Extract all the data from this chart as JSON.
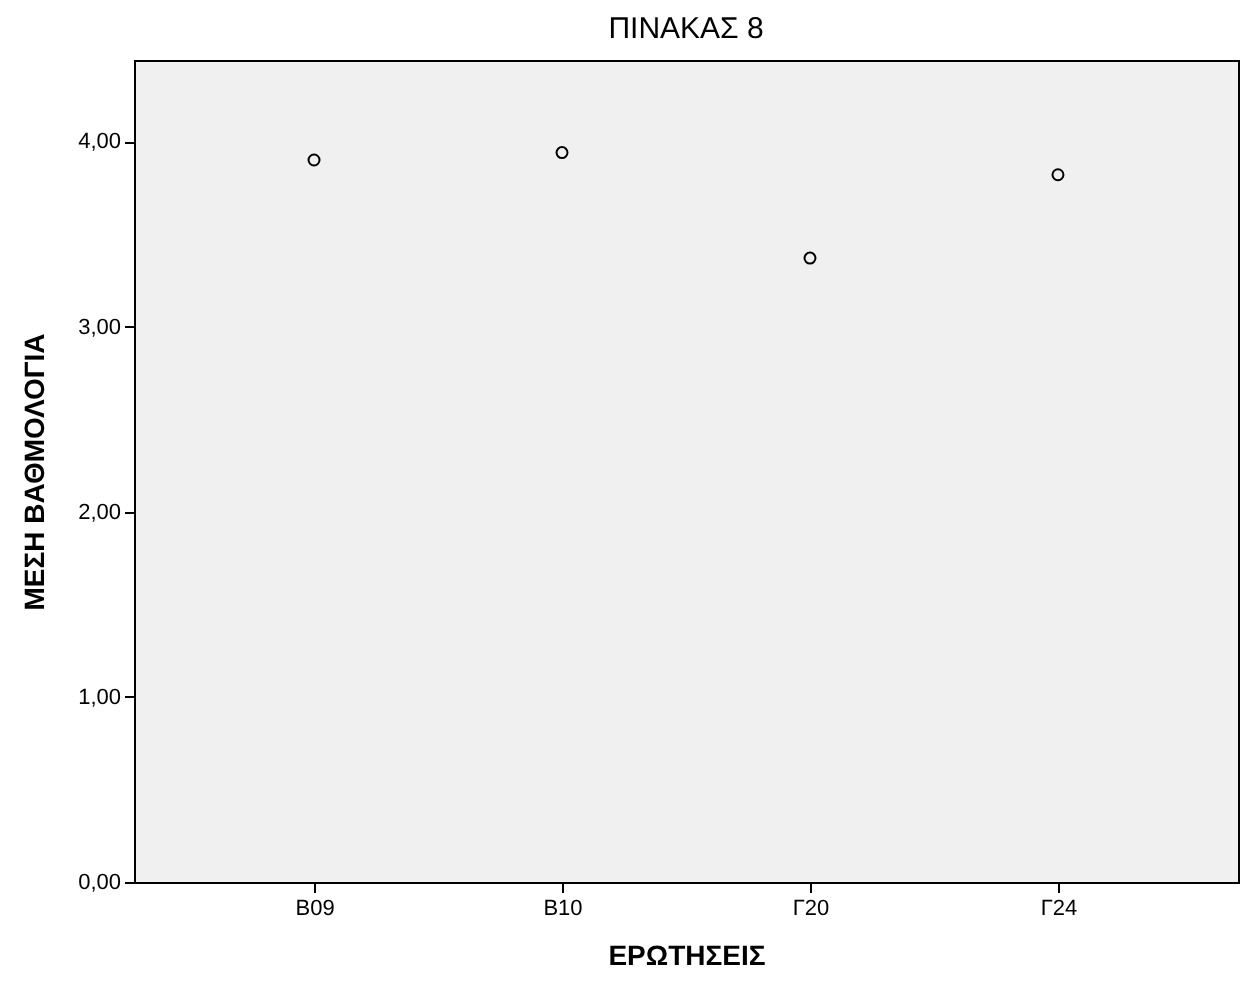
{
  "chart_data": {
    "type": "scatter",
    "title": "ΠΙΝΑΚΑΣ 8",
    "xlabel": "ΕΡΩΤΗΣΕΙΣ",
    "ylabel": "ΜΕΣΗ ΒΑΘΜΟΛΟΓΙΑ",
    "categories": [
      "Β09",
      "Β10",
      "Γ20",
      "Γ24"
    ],
    "series": [
      {
        "color": "#000000",
        "values": [
          3.9,
          3.94,
          3.37,
          3.82
        ]
      }
    ],
    "ylim": [
      0,
      4.44
    ],
    "yticks": [
      {
        "value": 0,
        "label": "0,00"
      },
      {
        "value": 1,
        "label": "1,00"
      },
      {
        "value": 2,
        "label": "2,00"
      },
      {
        "value": 3,
        "label": "3,00"
      },
      {
        "value": 4,
        "label": "4,00"
      }
    ],
    "marker": "circle",
    "grid": false,
    "legend": false
  }
}
